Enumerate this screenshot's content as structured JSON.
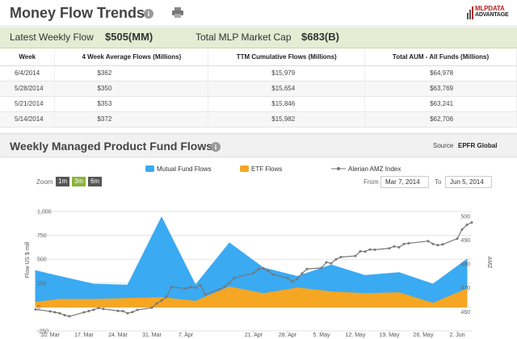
{
  "header": {
    "title": "Money Flow Trends",
    "info_icon": "info-icon",
    "print_icon": "print-icon",
    "logo_line1": "MLPDATA",
    "logo_line2": "ADVANTAGE"
  },
  "flow_summary": {
    "weekly_label": "Latest Weekly Flow",
    "weekly_value": "$505(MM)",
    "cap_label": "Total MLP Market Cap",
    "cap_value": "$683(B)"
  },
  "table": {
    "headers": [
      "Week",
      "4 Week Average Flows (Millions)",
      "TTM Cumulative Flows (Millions)",
      "Total AUM - All Funds (Millions)"
    ],
    "rows": [
      [
        "6/4/2014",
        "$362",
        "$15,979",
        "$64,978"
      ],
      [
        "5/28/2014",
        "$350",
        "$15,654",
        "$63,769"
      ],
      [
        "5/21/2014",
        "$353",
        "$15,846",
        "$63,241"
      ],
      [
        "5/14/2014",
        "$372",
        "$15,982",
        "$62,706"
      ]
    ]
  },
  "chart_section": {
    "title": "Weekly Managed Product Fund Flows",
    "source_label": "Source",
    "source_value": "EPFR Global",
    "zoom_label": "Zoom",
    "zoom_buttons": [
      "1m",
      "3m",
      "6m"
    ],
    "active_zoom": "3m",
    "from_label": "From",
    "from_value": "Mar 7, 2014",
    "to_label": "To",
    "to_value": "Jun 5, 2014",
    "colors": {
      "mutual": "#3aaaf2",
      "etf": "#f5a623",
      "index": "#777777"
    }
  },
  "chart_data": {
    "type": "area",
    "legend": [
      "Mutual Fund Flows",
      "ETF Flows",
      "Alerian AMZ Index"
    ],
    "ylabel_left": "Flow US $ mill",
    "ylabel_right": "AMZ",
    "y_left_ticks": [
      "1,000",
      "750",
      "500",
      "250",
      "0",
      "-250"
    ],
    "y_left_ticks_values": [
      1000,
      750,
      500,
      250,
      0,
      -250
    ],
    "y_left_range": [
      -250,
      1000
    ],
    "y_right_ticks": [
      "500",
      "490",
      "480",
      "470",
      "460"
    ],
    "y_right_ticks_values": [
      500,
      490,
      480,
      470,
      460
    ],
    "y_right_range": [
      452,
      502
    ],
    "x_tick_labels": [
      "10. Mar",
      "17. Mar",
      "24. Mar",
      "31. Mar",
      "7. Apr",
      "21. Apr",
      "28. Apr",
      "5. May",
      "12. May",
      "19. May",
      "26. May",
      "2. Jun"
    ],
    "x_tick_dates": [
      "2014-03-10",
      "2014-03-17",
      "2014-03-24",
      "2014-03-31",
      "2014-04-07",
      "2014-04-21",
      "2014-04-28",
      "2014-05-05",
      "2014-05-12",
      "2014-05-19",
      "2014-05-26",
      "2014-06-02"
    ],
    "x_range": [
      "2014-03-07",
      "2014-06-05"
    ],
    "weekly_dates": [
      "2014-03-07",
      "2014-03-12",
      "2014-03-19",
      "2014-03-26",
      "2014-04-02",
      "2014-04-09",
      "2014-04-16",
      "2014-04-23",
      "2014-04-30",
      "2014-05-07",
      "2014-05-14",
      "2014-05-21",
      "2014-05-28",
      "2014-06-04"
    ],
    "series": [
      {
        "name": "Mutual Fund Flows",
        "values": [
          380,
          320,
          240,
          230,
          940,
          230,
          670,
          410,
          320,
          440,
          330,
          360,
          240,
          500
        ]
      },
      {
        "name": "ETF Flows",
        "values": [
          50,
          80,
          80,
          90,
          100,
          60,
          210,
          140,
          200,
          160,
          140,
          150,
          40,
          190
        ]
      }
    ],
    "index_dates": [
      "2014-03-07",
      "2014-03-10",
      "2014-03-11",
      "2014-03-12",
      "2014-03-13",
      "2014-03-14",
      "2014-03-17",
      "2014-03-18",
      "2014-03-19",
      "2014-03-20",
      "2014-03-21",
      "2014-03-24",
      "2014-03-25",
      "2014-03-26",
      "2014-03-27",
      "2014-03-28",
      "2014-03-31",
      "2014-04-01",
      "2014-04-02",
      "2014-04-03",
      "2014-04-04",
      "2014-04-07",
      "2014-04-08",
      "2014-04-09",
      "2014-04-10",
      "2014-04-11",
      "2014-04-14",
      "2014-04-15",
      "2014-04-16",
      "2014-04-17",
      "2014-04-21",
      "2014-04-22",
      "2014-04-23",
      "2014-04-24",
      "2014-04-25",
      "2014-04-28",
      "2014-04-29",
      "2014-04-30",
      "2014-05-01",
      "2014-05-02",
      "2014-05-05",
      "2014-05-06",
      "2014-05-07",
      "2014-05-08",
      "2014-05-09",
      "2014-05-12",
      "2014-05-13",
      "2014-05-14",
      "2014-05-15",
      "2014-05-16",
      "2014-05-19",
      "2014-05-20",
      "2014-05-21",
      "2014-05-22",
      "2014-05-23",
      "2014-05-27",
      "2014-05-28",
      "2014-05-29",
      "2014-05-30",
      "2014-06-02",
      "2014-06-03",
      "2014-06-04",
      "2014-06-05"
    ],
    "index_values": [
      461.0,
      460.2,
      459.8,
      459.4,
      458.6,
      458.1,
      459.8,
      460.3,
      460.9,
      461.6,
      461.2,
      460.4,
      460.3,
      459.4,
      459.9,
      460.8,
      461.7,
      463.5,
      464.7,
      466.2,
      470.3,
      469.8,
      470.3,
      470.1,
      471.2,
      467.3,
      469.4,
      470.5,
      472.1,
      474.2,
      476.2,
      477.9,
      478.2,
      477.1,
      475.6,
      474.1,
      472.6,
      473.8,
      476.1,
      477.9,
      478.4,
      480.7,
      480.3,
      482.0,
      482.9,
      483.4,
      485.3,
      485.2,
      486.1,
      486.0,
      486.6,
      487.4,
      487.0,
      488.4,
      488.7,
      489.6,
      488.4,
      487.9,
      488.2,
      490.6,
      494.5,
      496.4,
      497.4
    ]
  }
}
